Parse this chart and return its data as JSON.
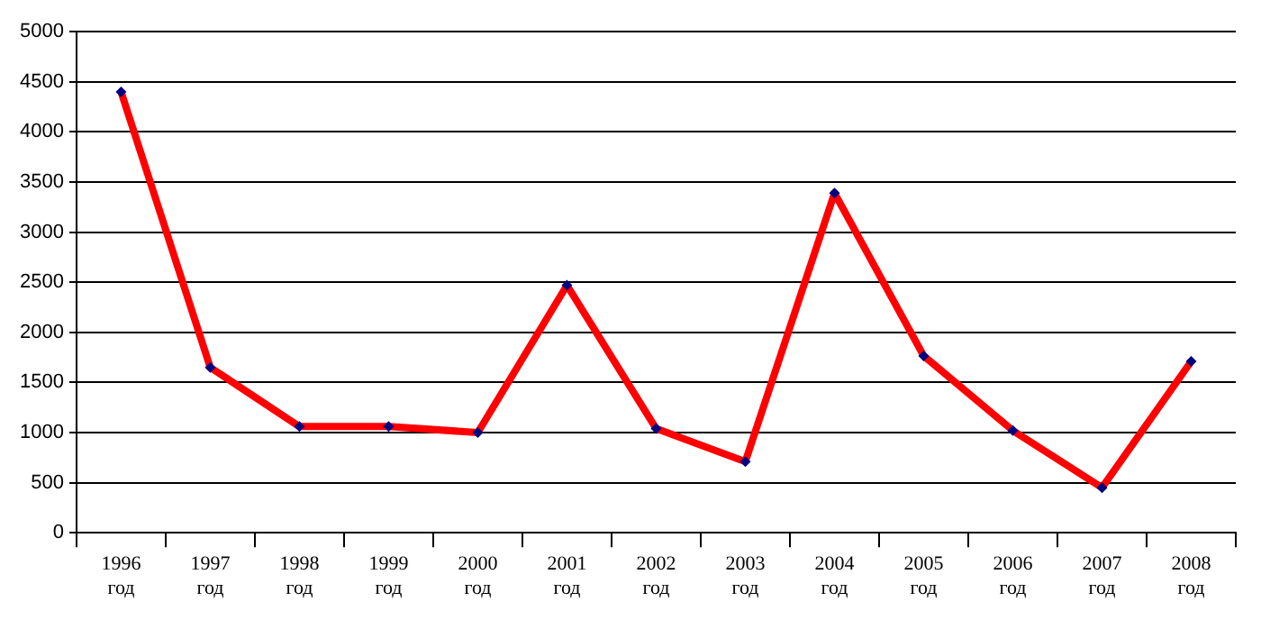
{
  "chart_data": {
    "type": "line",
    "categories": [
      "1996 год",
      "1997 год",
      "1998 год",
      "1999 год",
      "2000 год",
      "2001 год",
      "2002 год",
      "2003 год",
      "2004 год",
      "2005 год",
      "2006 год",
      "2007 год",
      "2008 год"
    ],
    "series": [
      {
        "color": "#ff0000",
        "values": [
          4400,
          1650,
          1060,
          1060,
          1000,
          2470,
          1040,
          710,
          3390,
          1765,
          1020,
          450,
          1710
        ]
      }
    ],
    "ylim": [
      0,
      5000
    ],
    "yticks": [
      0,
      500,
      1000,
      1500,
      2000,
      2500,
      3000,
      3500,
      4000,
      4500,
      5000
    ],
    "grid": "y",
    "legend": false,
    "marker": "diamond",
    "line_style": "solid"
  }
}
